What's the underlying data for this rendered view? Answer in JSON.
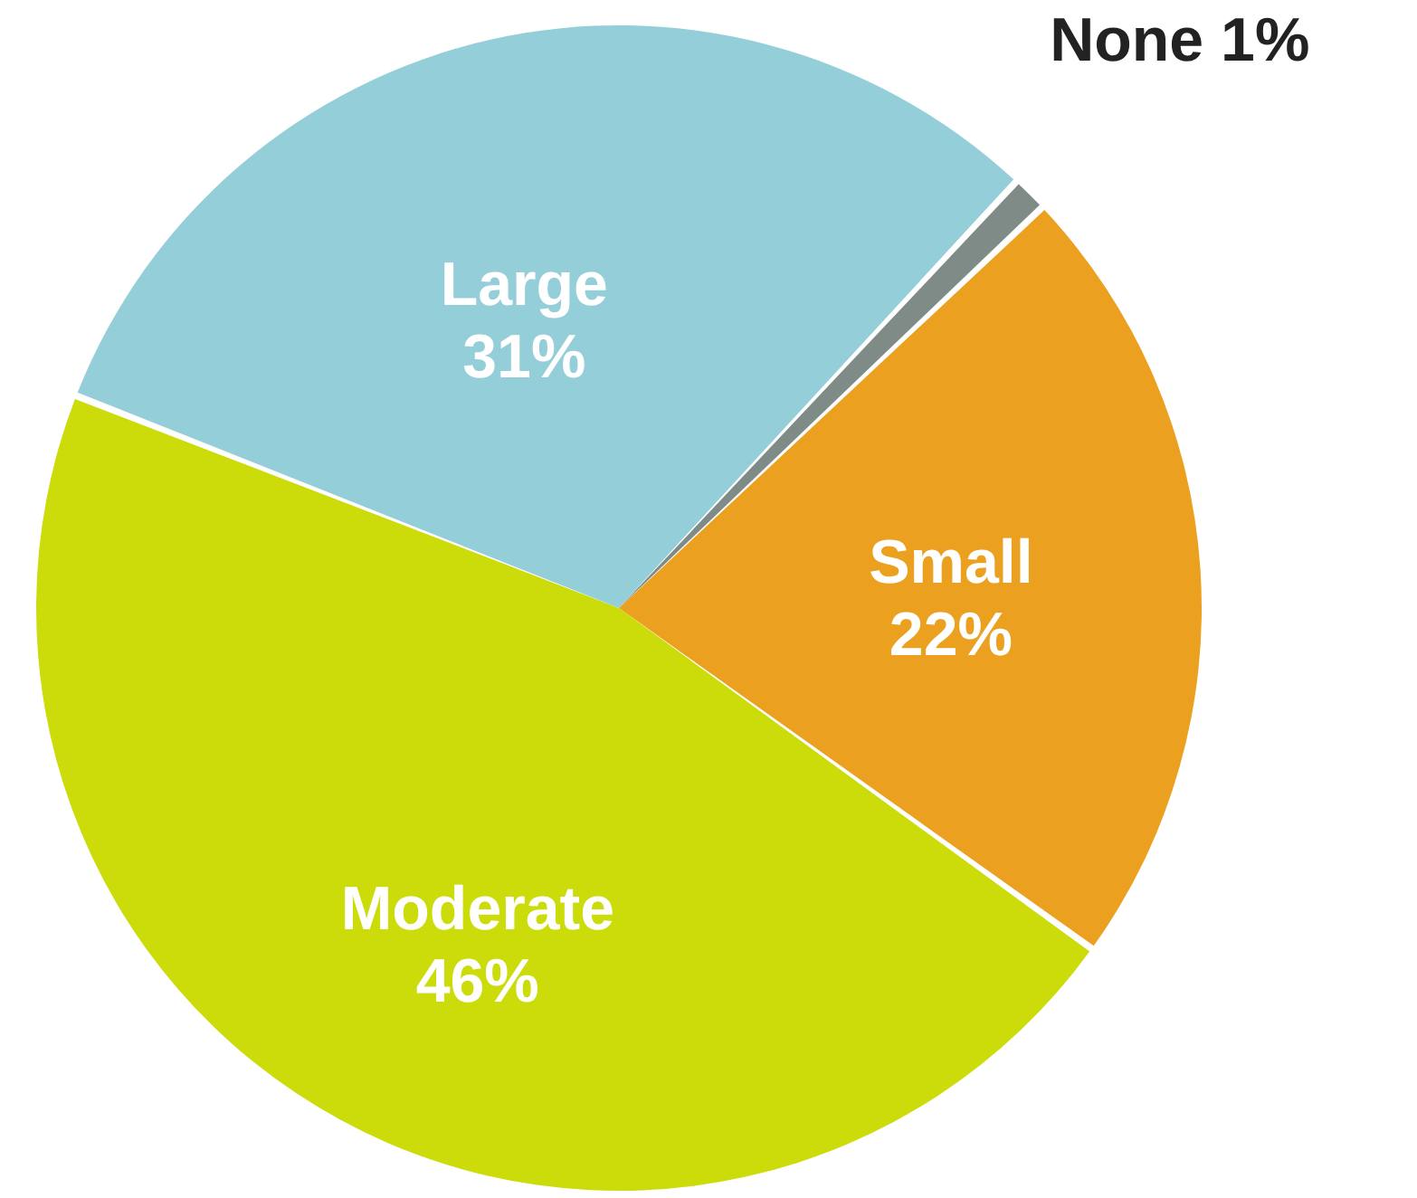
{
  "chart_data": {
    "type": "pie",
    "categories": [
      "None",
      "Small",
      "Moderate",
      "Large"
    ],
    "values": [
      1,
      22,
      46,
      31
    ],
    "value_labels": [
      "1%",
      "22%",
      "46%",
      "31%"
    ],
    "colors": [
      "#7f8b86",
      "#eba01f",
      "#cbdc0a",
      "#94ced8"
    ]
  }
}
